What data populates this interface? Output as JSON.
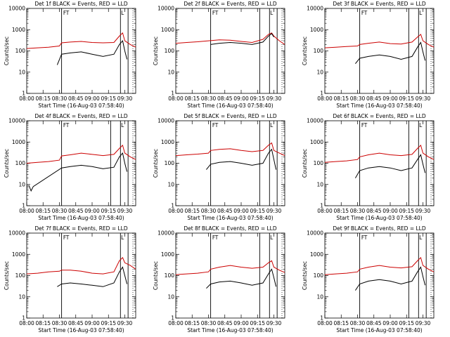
{
  "chart_data": [
    {
      "type": "line",
      "title": "Det 1f BLACK = Events, RED = LLD",
      "xlabel": "Start Time (16-Aug-03 07:58:40)",
      "ylabel": "Counts/sec",
      "xlim": [
        480,
        580
      ],
      "ylim": [
        1,
        10000
      ],
      "yscale": "log",
      "xtick_labels": [
        "08:00",
        "08:15",
        "08:30",
        "08:45",
        "09:00",
        "09:15",
        "09:30"
      ],
      "ytick_labels": [
        "1",
        "10",
        "100",
        "1000",
        "10000"
      ],
      "vlines": [
        512,
        566,
        573
      ],
      "annotations": [
        "F",
        "T",
        "L"
      ],
      "series": [
        {
          "name": "LLD",
          "color": "#cc0000",
          "x": [
            480,
            490,
            500,
            510,
            512,
            520,
            530,
            540,
            550,
            560,
            565,
            568,
            570,
            575,
            580
          ],
          "values": [
            130,
            140,
            150,
            170,
            240,
            260,
            280,
            250,
            240,
            250,
            500,
            700,
            300,
            200,
            150
          ]
        },
        {
          "name": "Events",
          "color": "#000000",
          "x": [
            508,
            512,
            520,
            530,
            540,
            550,
            560,
            565,
            568,
            570,
            572
          ],
          "values": [
            22,
            70,
            80,
            90,
            70,
            55,
            70,
            200,
            300,
            100,
            40
          ]
        }
      ]
    },
    {
      "type": "line",
      "title": "Det 2f BLACK = Events, RED = LLD",
      "xlabel": "Start Time (16-Aug-03 07:58:40)",
      "ylabel": "Counts/sec",
      "xlim": [
        480,
        580
      ],
      "ylim": [
        1,
        10000
      ],
      "yscale": "log",
      "xtick_labels": [
        "08:00",
        "08:15",
        "08:30",
        "08:45",
        "09:00",
        "09:15",
        "09:30"
      ],
      "ytick_labels": [
        "1",
        "10",
        "100",
        "1000",
        "10000"
      ],
      "vlines": [
        512,
        557,
        566,
        573
      ],
      "annotations": [
        "F",
        "T",
        "L"
      ],
      "series": [
        {
          "name": "LLD",
          "color": "#cc0000",
          "x": [
            480,
            490,
            500,
            510,
            520,
            530,
            540,
            550,
            560,
            565,
            568,
            570,
            575,
            580
          ],
          "values": [
            230,
            250,
            270,
            300,
            330,
            320,
            280,
            250,
            350,
            600,
            700,
            500,
            300,
            200
          ]
        },
        {
          "name": "Events",
          "color": "#000000",
          "x": [
            512,
            520,
            530,
            540,
            550,
            560,
            565,
            568,
            570
          ],
          "values": [
            200,
            230,
            250,
            230,
            200,
            260,
            500,
            650,
            450
          ]
        }
      ]
    },
    {
      "type": "line",
      "title": "Det 3f BLACK = Events, RED = LLD",
      "xlabel": "Start Time (16-Aug-03 07:58:40)",
      "ylabel": "Counts/sec",
      "xlim": [
        480,
        580
      ],
      "ylim": [
        1,
        10000
      ],
      "yscale": "log",
      "xtick_labels": [
        "08:00",
        "08:15",
        "08:30",
        "08:45",
        "09:00",
        "09:15",
        "09:30"
      ],
      "ytick_labels": [
        "1",
        "10",
        "100",
        "1000",
        "10000"
      ],
      "vlines": [
        512,
        557,
        566,
        573
      ],
      "annotations": [
        "F",
        "T",
        "L"
      ],
      "series": [
        {
          "name": "LLD",
          "color": "#cc0000",
          "x": [
            480,
            490,
            500,
            510,
            512,
            520,
            530,
            540,
            550,
            560,
            565,
            568,
            570,
            575,
            580
          ],
          "values": [
            140,
            150,
            160,
            170,
            200,
            230,
            260,
            220,
            210,
            260,
            450,
            600,
            300,
            200,
            150
          ]
        },
        {
          "name": "Events",
          "color": "#000000",
          "x": [
            508,
            512,
            520,
            530,
            540,
            550,
            560,
            565,
            568,
            570,
            572
          ],
          "values": [
            25,
            45,
            55,
            65,
            55,
            40,
            55,
            150,
            250,
            90,
            35
          ]
        }
      ]
    },
    {
      "type": "line",
      "title": "Det 4f BLACK = Events, RED = LLD",
      "xlabel": "Start Time (16-Aug-03 07:58:40)",
      "ylabel": "Counts/sec",
      "xlim": [
        480,
        580
      ],
      "ylim": [
        1,
        10000
      ],
      "yscale": "log",
      "xtick_labels": [
        "08:00",
        "08:15",
        "08:30",
        "08:45",
        "09:00",
        "09:15",
        "09:30"
      ],
      "ytick_labels": [
        "1",
        "10",
        "100",
        "1000",
        "10000"
      ],
      "vlines": [
        512,
        557,
        566,
        573
      ],
      "annotations": [
        "F",
        "T",
        "L"
      ],
      "series": [
        {
          "name": "LLD",
          "color": "#cc0000",
          "x": [
            480,
            490,
            500,
            510,
            512,
            520,
            530,
            540,
            550,
            560,
            565,
            568,
            570,
            575,
            580
          ],
          "values": [
            100,
            110,
            120,
            140,
            220,
            250,
            300,
            260,
            230,
            260,
            500,
            700,
            300,
            200,
            150
          ]
        },
        {
          "name": "Events",
          "color": "#000000",
          "x": [
            482,
            484,
            486,
            512,
            520,
            530,
            540,
            550,
            560,
            565,
            568,
            570,
            572
          ],
          "values": [
            9,
            5,
            8,
            60,
            70,
            80,
            70,
            55,
            65,
            200,
            300,
            100,
            40
          ]
        }
      ]
    },
    {
      "type": "line",
      "title": "Det 5f BLACK = Events, RED = LLD",
      "xlabel": "Start Time (16-Aug-03 07:58:40)",
      "ylabel": "Counts/sec",
      "xlim": [
        480,
        580
      ],
      "ylim": [
        1,
        10000
      ],
      "yscale": "log",
      "xtick_labels": [
        "08:00",
        "08:15",
        "08:30",
        "08:45",
        "09:00",
        "09:15",
        "09:30"
      ],
      "ytick_labels": [
        "1",
        "10",
        "100",
        "1000",
        "10000"
      ],
      "vlines": [
        512,
        557,
        566,
        573
      ],
      "annotations": [
        "F",
        "T",
        "L"
      ],
      "series": [
        {
          "name": "LLD",
          "color": "#cc0000",
          "x": [
            480,
            490,
            500,
            510,
            512,
            520,
            530,
            540,
            550,
            560,
            565,
            568,
            570,
            575,
            580
          ],
          "values": [
            230,
            250,
            270,
            300,
            400,
            450,
            480,
            400,
            350,
            400,
            700,
            900,
            400,
            300,
            230
          ]
        },
        {
          "name": "Events",
          "color": "#000000",
          "x": [
            508,
            512,
            520,
            530,
            540,
            550,
            560,
            565,
            568,
            570,
            572
          ],
          "values": [
            50,
            90,
            110,
            120,
            100,
            80,
            100,
            300,
            450,
            150,
            50
          ]
        }
      ]
    },
    {
      "type": "line",
      "title": "Det 6f BLACK = Events, RED = LLD",
      "xlabel": "Start Time (16-Aug-03 07:58:40)",
      "ylabel": "Counts/sec",
      "xlim": [
        480,
        580
      ],
      "ylim": [
        1,
        10000
      ],
      "yscale": "log",
      "xtick_labels": [
        "08:00",
        "08:15",
        "08:30",
        "08:45",
        "09:00",
        "09:15",
        "09:30"
      ],
      "ytick_labels": [
        "1",
        "10",
        "100",
        "1000",
        "10000"
      ],
      "vlines": [
        512,
        557,
        566,
        573
      ],
      "annotations": [
        "F",
        "T",
        "L"
      ],
      "series": [
        {
          "name": "LLD",
          "color": "#cc0000",
          "x": [
            480,
            490,
            500,
            510,
            512,
            520,
            530,
            540,
            550,
            560,
            565,
            568,
            570,
            575,
            580
          ],
          "values": [
            110,
            120,
            130,
            150,
            200,
            250,
            300,
            250,
            230,
            260,
            500,
            700,
            300,
            200,
            150
          ]
        },
        {
          "name": "Events",
          "color": "#000000",
          "x": [
            508,
            512,
            520,
            530,
            540,
            550,
            560,
            565,
            568,
            570,
            572
          ],
          "values": [
            20,
            45,
            60,
            70,
            60,
            45,
            60,
            150,
            250,
            90,
            35
          ]
        }
      ]
    },
    {
      "type": "line",
      "title": "Det 7f BLACK = Events, RED = LLD",
      "xlabel": "Start Time (16-Aug-03 07:58:40)",
      "ylabel": "Counts/sec",
      "xlim": [
        480,
        580
      ],
      "ylim": [
        1,
        10000
      ],
      "yscale": "log",
      "xtick_labels": [
        "08:00",
        "08:15",
        "08:30",
        "08:45",
        "09:00",
        "09:15",
        "09:30"
      ],
      "ytick_labels": [
        "1",
        "10",
        "100",
        "1000",
        "10000"
      ],
      "vlines": [
        512,
        566,
        573
      ],
      "annotations": [
        "F",
        "T",
        "L"
      ],
      "series": [
        {
          "name": "LLD",
          "color": "#cc0000",
          "x": [
            480,
            490,
            500,
            510,
            512,
            520,
            530,
            540,
            550,
            560,
            565,
            568,
            570,
            575,
            580
          ],
          "values": [
            120,
            130,
            150,
            160,
            180,
            180,
            160,
            130,
            120,
            150,
            500,
            700,
            400,
            300,
            200
          ]
        },
        {
          "name": "Events",
          "color": "#000000",
          "x": [
            508,
            512,
            520,
            530,
            540,
            550,
            560,
            565,
            568,
            570,
            572
          ],
          "values": [
            30,
            40,
            45,
            40,
            35,
            30,
            45,
            150,
            250,
            100,
            40
          ]
        }
      ]
    },
    {
      "type": "line",
      "title": "Det 8f BLACK = Events, RED = LLD",
      "xlabel": "Start Time (16-Aug-03 07:58:40)",
      "ylabel": "Counts/sec",
      "xlim": [
        480,
        580
      ],
      "ylim": [
        1,
        10000
      ],
      "yscale": "log",
      "xtick_labels": [
        "08:00",
        "08:15",
        "08:30",
        "08:45",
        "09:00",
        "09:15",
        "09:30"
      ],
      "ytick_labels": [
        "1",
        "10",
        "100",
        "1000",
        "10000"
      ],
      "vlines": [
        512,
        557,
        566,
        573
      ],
      "annotations": [
        "F",
        "T",
        "L"
      ],
      "series": [
        {
          "name": "LLD",
          "color": "#cc0000",
          "x": [
            480,
            490,
            500,
            510,
            512,
            520,
            530,
            540,
            550,
            560,
            565,
            568,
            570,
            575,
            580
          ],
          "values": [
            110,
            120,
            130,
            150,
            200,
            250,
            300,
            250,
            220,
            250,
            400,
            500,
            250,
            180,
            140
          ]
        },
        {
          "name": "Events",
          "color": "#000000",
          "x": [
            508,
            512,
            520,
            530,
            540,
            550,
            560,
            565,
            568,
            570,
            572
          ],
          "values": [
            25,
            40,
            50,
            55,
            45,
            35,
            45,
            120,
            200,
            80,
            30
          ]
        }
      ]
    },
    {
      "type": "line",
      "title": "Det 9f BLACK = Events, RED = LLD",
      "xlabel": "Start Time (16-Aug-03 07:58:40)",
      "ylabel": "Counts/sec",
      "xlim": [
        480,
        580
      ],
      "ylim": [
        1,
        10000
      ],
      "yscale": "log",
      "xtick_labels": [
        "08:00",
        "08:15",
        "08:30",
        "08:45",
        "09:00",
        "09:15",
        "09:30"
      ],
      "ytick_labels": [
        "1",
        "10",
        "100",
        "1000",
        "10000"
      ],
      "vlines": [
        512,
        557,
        566,
        573
      ],
      "annotations": [
        "F",
        "T",
        "L"
      ],
      "series": [
        {
          "name": "LLD",
          "color": "#cc0000",
          "x": [
            480,
            490,
            500,
            510,
            512,
            520,
            530,
            540,
            550,
            560,
            565,
            568,
            570,
            575,
            580
          ],
          "values": [
            110,
            120,
            130,
            150,
            200,
            250,
            300,
            250,
            230,
            260,
            500,
            700,
            300,
            200,
            150
          ]
        },
        {
          "name": "Events",
          "color": "#000000",
          "x": [
            508,
            512,
            520,
            530,
            540,
            550,
            560,
            565,
            568,
            570,
            572
          ],
          "values": [
            20,
            40,
            55,
            65,
            55,
            40,
            55,
            150,
            250,
            90,
            35
          ]
        }
      ]
    }
  ]
}
